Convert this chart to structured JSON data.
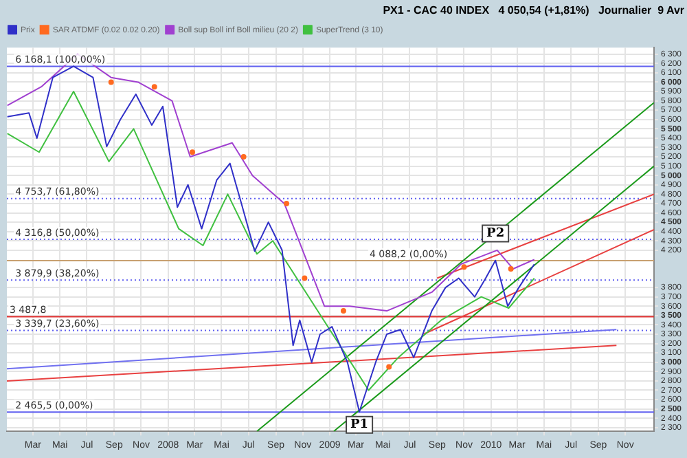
{
  "chart_data": {
    "type": "line",
    "title": "PX1 - CAC 40 INDEX   4 050,54 (+1,81%)   Journalier  9 Avr",
    "xlim": [
      "2007-01-01",
      "2011-01-05"
    ],
    "xticks": [
      {
        "value": "2007-03-01",
        "label": "Mar"
      },
      {
        "value": "2007-05-01",
        "label": "Mai"
      },
      {
        "value": "2007-07-01",
        "label": "Jul"
      },
      {
        "value": "2007-09-01",
        "label": "Sep"
      },
      {
        "value": "2007-11-01",
        "label": "Nov"
      },
      {
        "value": "2008-01-01",
        "label": "2008"
      },
      {
        "value": "2008-03-01",
        "label": "Mar"
      },
      {
        "value": "2008-05-01",
        "label": "Mai"
      },
      {
        "value": "2008-07-01",
        "label": "Jul"
      },
      {
        "value": "2008-09-01",
        "label": "Sep"
      },
      {
        "value": "2008-11-01",
        "label": "Nov"
      },
      {
        "value": "2009-01-01",
        "label": "2009"
      },
      {
        "value": "2009-03-01",
        "label": "Mar"
      },
      {
        "value": "2009-05-01",
        "label": "Mai"
      },
      {
        "value": "2009-07-01",
        "label": "Jul"
      },
      {
        "value": "2009-09-01",
        "label": "Sep"
      },
      {
        "value": "2009-11-01",
        "label": "Nov"
      },
      {
        "value": "2010-01-01",
        "label": "2010"
      },
      {
        "value": "2010-03-01",
        "label": "Mar"
      },
      {
        "value": "2010-05-01",
        "label": "Mai"
      },
      {
        "value": "2010-07-01",
        "label": "Jul"
      },
      {
        "value": "2010-09-01",
        "label": "Sep"
      },
      {
        "value": "2010-11-01",
        "label": "Nov"
      }
    ],
    "ylim": [
      2260,
      6370
    ],
    "yticks": [
      {
        "value": 2300,
        "label": "2 300"
      },
      {
        "value": 2400,
        "label": "2 400"
      },
      {
        "value": 2500,
        "label": "2 500"
      },
      {
        "value": 2600,
        "label": "2 600"
      },
      {
        "value": 2700,
        "label": "2 700"
      },
      {
        "value": 2800,
        "label": "2 800"
      },
      {
        "value": 2900,
        "label": "2 900"
      },
      {
        "value": 3000,
        "label": "3 000"
      },
      {
        "value": 3100,
        "label": "3 100"
      },
      {
        "value": 3200,
        "label": "3 200"
      },
      {
        "value": 3300,
        "label": "3 300"
      },
      {
        "value": 3400,
        "label": "3 400"
      },
      {
        "value": 3500,
        "label": "3 500"
      },
      {
        "value": 3600,
        "label": "3 600"
      },
      {
        "value": 3700,
        "label": "3 700"
      },
      {
        "value": 3800,
        "label": "3 800"
      },
      {
        "value": 4200,
        "label": "4 200"
      },
      {
        "value": 4300,
        "label": "4 300"
      },
      {
        "value": 4400,
        "label": "4 400"
      },
      {
        "value": 4500,
        "label": "4 500"
      },
      {
        "value": 4600,
        "label": "4 600"
      },
      {
        "value": 4700,
        "label": "4 700"
      },
      {
        "value": 4800,
        "label": "4 800"
      },
      {
        "value": 4900,
        "label": "4 900"
      },
      {
        "value": 5000,
        "label": "5 000"
      },
      {
        "value": 5100,
        "label": "5 100"
      },
      {
        "value": 5200,
        "label": "5 200"
      },
      {
        "value": 5300,
        "label": "5 300"
      },
      {
        "value": 5400,
        "label": "5 400"
      },
      {
        "value": 5500,
        "label": "5 500"
      },
      {
        "value": 5600,
        "label": "5 600"
      },
      {
        "value": 5700,
        "label": "5 700"
      },
      {
        "value": 5800,
        "label": "5 800"
      },
      {
        "value": 5900,
        "label": "5 900"
      },
      {
        "value": 6000,
        "label": "6 000"
      },
      {
        "value": 6100,
        "label": "6 100"
      },
      {
        "value": 6200,
        "label": "6 200"
      },
      {
        "value": 6300,
        "label": "6 300"
      }
    ],
    "grid": true,
    "legend": "top left",
    "series": [
      {
        "name": "Prix",
        "color": "#3030c8",
        "x": [
          "2007-01-02",
          "2007-02-20",
          "2007-03-10",
          "2007-04-15",
          "2007-06-01",
          "2007-07-15",
          "2007-08-15",
          "2007-09-15",
          "2007-10-20",
          "2007-11-25",
          "2007-12-20",
          "2008-01-22",
          "2008-02-15",
          "2008-03-17",
          "2008-04-20",
          "2008-05-20",
          "2008-06-15",
          "2008-07-15",
          "2008-08-15",
          "2008-09-15",
          "2008-10-10",
          "2008-10-25",
          "2008-11-21",
          "2008-12-10",
          "2009-01-06",
          "2009-02-10",
          "2009-03-09",
          "2009-04-15",
          "2009-05-10",
          "2009-06-10",
          "2009-07-10",
          "2009-08-20",
          "2009-09-20",
          "2009-10-20",
          "2009-11-25",
          "2009-12-20",
          "2010-01-11",
          "2010-02-08",
          "2010-03-05",
          "2010-04-09"
        ],
        "values": [
          5630,
          5670,
          5400,
          6050,
          6170,
          6050,
          5310,
          5600,
          5870,
          5540,
          5740,
          4660,
          4900,
          4430,
          4950,
          5130,
          4700,
          4190,
          4500,
          4200,
          3180,
          3450,
          3000,
          3300,
          3380,
          3000,
          2470,
          3000,
          3300,
          3350,
          3050,
          3550,
          3800,
          3900,
          3700,
          3900,
          4090,
          3600,
          3800,
          4050
        ]
      },
      {
        "name": "SAR ATDMF (0.02 0.02 0.20)",
        "type": "scatter",
        "marker": "circle",
        "color": "#ff6a20",
        "x": [
          "2007-08-25",
          "2007-12-01",
          "2008-02-25",
          "2008-06-20",
          "2008-09-25",
          "2008-11-05",
          "2009-02-01",
          "2009-05-15",
          "2009-11-01",
          "2010-02-15"
        ],
        "values": [
          6000,
          5950,
          5250,
          5200,
          4700,
          3900,
          3550,
          2950,
          4020,
          4000
        ]
      },
      {
        "name": "Boll sup Boll inf Boll milieu (20 2)",
        "color": "#a040d0",
        "x": [
          "2007-01-02",
          "2007-03-20",
          "2007-06-10",
          "2007-08-25",
          "2007-10-25",
          "2008-01-10",
          "2008-02-20",
          "2008-05-25",
          "2008-07-10",
          "2008-09-20",
          "2008-10-15",
          "2008-12-20",
          "2009-02-15",
          "2009-05-10",
          "2009-08-20",
          "2009-10-25",
          "2010-01-15",
          "2010-02-20",
          "2010-04-09"
        ],
        "values": [
          5750,
          5950,
          6300,
          6050,
          6000,
          5800,
          5200,
          5350,
          5000,
          4700,
          4400,
          3600,
          3600,
          3550,
          3750,
          4050,
          4200,
          4000,
          4100
        ]
      },
      {
        "name": "SuperTrend (3 10)",
        "color": "#40c040",
        "x": [
          "2007-01-02",
          "2007-03-15",
          "2007-06-01",
          "2007-08-20",
          "2007-10-15",
          "2008-01-25",
          "2008-03-20",
          "2008-05-15",
          "2008-07-20",
          "2008-08-25",
          "2009-03-30",
          "2009-06-05",
          "2009-09-10",
          "2009-12-10",
          "2010-02-10",
          "2010-04-09"
        ],
        "values": [
          5450,
          5250,
          5900,
          5150,
          5500,
          4430,
          4250,
          4800,
          4160,
          4300,
          2700,
          3050,
          3450,
          3700,
          3580,
          3900
        ]
      },
      {
        "type": "line",
        "color": "#1a9a1a",
        "x": [
          "2008-07-20",
          "2011-01-05"
        ],
        "values": [
          2260,
          5780
        ]
      },
      {
        "type": "line",
        "color": "#1a9a1a",
        "x": [
          "2009-01-10",
          "2011-01-05"
        ],
        "values": [
          2260,
          5100
        ]
      },
      {
        "type": "line",
        "color": "#e84040",
        "x": [
          "2009-09-01",
          "2011-01-05"
        ],
        "values": [
          3900,
          4800
        ]
      },
      {
        "type": "line",
        "color": "#e84040",
        "x": [
          "2009-08-01",
          "2011-01-05"
        ],
        "values": [
          3300,
          4420
        ]
      },
      {
        "type": "line",
        "color": "#e84040",
        "x": [
          "2007-01-01",
          "2010-10-12"
        ],
        "values": [
          2800,
          3180
        ]
      },
      {
        "type": "line",
        "color": "#7070f0",
        "x": [
          "2007-01-01",
          "2010-10-12"
        ],
        "values": [
          2930,
          3350
        ]
      }
    ],
    "ref_lines": [
      {
        "axis": "y",
        "value": 6168.1,
        "label": "6 168,1 (100,00%)",
        "color": "#6060f0",
        "line_style": "solid"
      },
      {
        "axis": "y",
        "value": 4753.7,
        "label": "4 753,7 (61,80%)",
        "color": "#6060f0",
        "line_style": "dotted"
      },
      {
        "axis": "y",
        "value": 4316.8,
        "label": "4 316,8 (50,00%)",
        "color": "#6060f0",
        "line_style": "dotted"
      },
      {
        "axis": "y",
        "value": 3879.9,
        "label": "3 879,9 (38,20%)",
        "color": "#6060f0",
        "line_style": "dotted"
      },
      {
        "axis": "y",
        "value": 3339.7,
        "label": "3 339,7 (23,60%)",
        "color": "#6060f0",
        "line_style": "dotted"
      },
      {
        "axis": "y",
        "value": 2465.5,
        "label": "2 465,5 (0,00%)",
        "color": "#6060f0",
        "line_style": "solid"
      },
      {
        "axis": "y",
        "value": 4088.2,
        "label": "4 088,2 (0,00%)",
        "color": "#c8a070",
        "line_style": "solid"
      },
      {
        "axis": "y",
        "value": 3487.8,
        "label": "3 487,8",
        "color": "#e03030",
        "line_style": "solid"
      }
    ],
    "annotations": [
      {
        "text": "P1",
        "x": "2009-03-09",
        "y": 2330
      },
      {
        "text": "P2",
        "x": "2010-01-11",
        "y": 4380
      }
    ]
  }
}
